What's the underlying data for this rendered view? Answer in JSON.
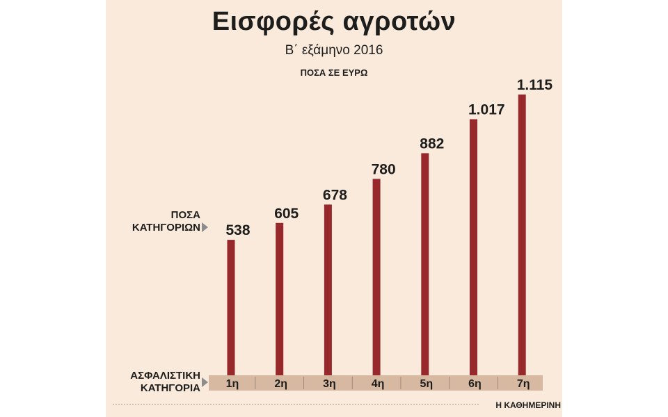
{
  "header": {
    "title": "Εισφορές αγροτών",
    "subtitle": "Β΄ εξάμηνο 2016",
    "units": "ΠΟΣΑ ΣΕ ΕΥΡΩ"
  },
  "side_labels": {
    "amounts": [
      "ΠΟΣΑ",
      "ΚΑΤΗΓΟΡΙΩΝ"
    ],
    "category": [
      "ΑΣΦΑΛΙΣΤΙΚΗ",
      "ΚΑΤΗΓΟΡΙΑ"
    ]
  },
  "colors": {
    "bar": "#97282c",
    "panel": "#faeadc",
    "axis_band": "#d7b9a2",
    "text": "#1d1d1b",
    "arrow": "#8c8c8c"
  },
  "chart_data": {
    "type": "bar",
    "categories": [
      "1η",
      "2η",
      "3η",
      "4η",
      "5η",
      "6η",
      "7η"
    ],
    "values": [
      538,
      605,
      678,
      780,
      882,
      1017,
      1115
    ],
    "value_labels": [
      "538",
      "605",
      "678",
      "780",
      "882",
      "1.017",
      "1.115"
    ],
    "ylim": [
      0,
      1115
    ],
    "grid": false,
    "legend": "none"
  },
  "footer": {
    "credit": "Η ΚΑΘΗΜΕΡΙΝΗ"
  }
}
